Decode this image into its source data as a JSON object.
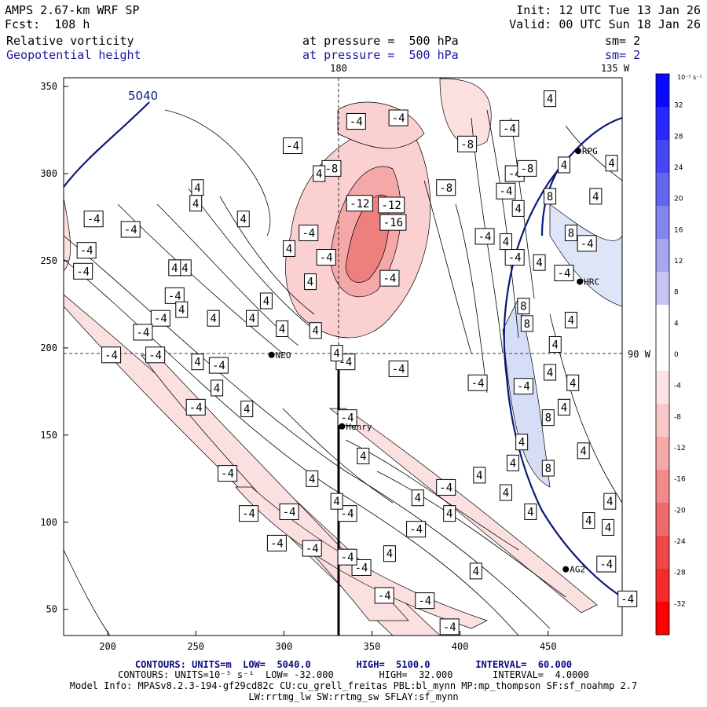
{
  "header": {
    "model": "AMPS 2.67-km WRF SP",
    "init": "Init: 12 UTC Tue 13 Jan 26",
    "fcst": "Fcst:  108 h",
    "valid": "Valid: 00 UTC Sun 18 Jan 26",
    "field1": "Relative vorticity",
    "field1_level": "at pressure =  500 hPa",
    "field1_sm": "sm= 2",
    "field2": "Geopotential height",
    "field2_level": "at pressure =  500 hPa",
    "field2_sm": "sm= 2"
  },
  "map": {
    "lon_label_top": "180",
    "lon_label_right_top": "135 W",
    "lat_label_right": "90 W",
    "height_contour_label": "5040",
    "x_ticks": [
      "200",
      "250",
      "300",
      "350",
      "400",
      "450"
    ],
    "y_ticks": [
      "350",
      "300",
      "250",
      "200",
      "150",
      "100",
      "50"
    ],
    "stations": [
      {
        "name": "RPG",
        "x": 467,
        "y": 313
      },
      {
        "name": "HRC",
        "x": 468,
        "y": 238
      },
      {
        "name": "NEO",
        "x": 293,
        "y": 196
      },
      {
        "name": "Henry",
        "x": 333,
        "y": 155
      },
      {
        "name": "AG2",
        "x": 460,
        "y": 73
      }
    ],
    "vorticity_labels": [
      {
        "t": "-4",
        "x": 213,
        "y": 268
      },
      {
        "t": "-4",
        "x": 192,
        "y": 274
      },
      {
        "t": "-4",
        "x": 188,
        "y": 256
      },
      {
        "t": "-4",
        "x": 186,
        "y": 244
      },
      {
        "t": "-4",
        "x": 230,
        "y": 217
      },
      {
        "t": "-4",
        "x": 220,
        "y": 209
      },
      {
        "t": "-4",
        "x": 202,
        "y": 196
      },
      {
        "t": "-4",
        "x": 227,
        "y": 196
      },
      {
        "t": "-4",
        "x": 242,
        "y": 246
      },
      {
        "t": "-4",
        "x": 238,
        "y": 230
      },
      {
        "t": "-4",
        "x": 263,
        "y": 190
      },
      {
        "t": "-4",
        "x": 250,
        "y": 166
      },
      {
        "t": "-4",
        "x": 268,
        "y": 128
      },
      {
        "t": "-4",
        "x": 280,
        "y": 105
      },
      {
        "t": "-4",
        "x": 303,
        "y": 106
      },
      {
        "t": "-4",
        "x": 296,
        "y": 88
      },
      {
        "t": "-4",
        "x": 316,
        "y": 85
      },
      {
        "t": "-4",
        "x": 344,
        "y": 74
      },
      {
        "t": "-4",
        "x": 357,
        "y": 58
      },
      {
        "t": "-4",
        "x": 380,
        "y": 55
      },
      {
        "t": "-4",
        "x": 394,
        "y": 40
      },
      {
        "t": "-4",
        "x": 314,
        "y": 266
      },
      {
        "t": "-4",
        "x": 305,
        "y": 316
      },
      {
        "t": "-4",
        "x": 324,
        "y": 252
      },
      {
        "t": "-4",
        "x": 335,
        "y": 192
      },
      {
        "t": "-4",
        "x": 336,
        "y": 160
      },
      {
        "t": "-4",
        "x": 336,
        "y": 80
      },
      {
        "t": "-4",
        "x": 336,
        "y": 105
      },
      {
        "t": "-4",
        "x": 341,
        "y": 330
      },
      {
        "t": "-4",
        "x": 365,
        "y": 332
      },
      {
        "t": "-4",
        "x": 360,
        "y": 240
      },
      {
        "t": "-4",
        "x": 365,
        "y": 188
      },
      {
        "t": "-4",
        "x": 375,
        "y": 96
      },
      {
        "t": "-4",
        "x": 392,
        "y": 120
      },
      {
        "t": "-4",
        "x": 410,
        "y": 180
      },
      {
        "t": "-4",
        "x": 414,
        "y": 264
      },
      {
        "t": "-4",
        "x": 428,
        "y": 326
      },
      {
        "t": "-4",
        "x": 431,
        "y": 300
      },
      {
        "t": "-4",
        "x": 426,
        "y": 290
      },
      {
        "t": "-4",
        "x": 431,
        "y": 252
      },
      {
        "t": "-4",
        "x": 436,
        "y": 178
      },
      {
        "t": "-4",
        "x": 459,
        "y": 243
      },
      {
        "t": "-4",
        "x": 472,
        "y": 260
      },
      {
        "t": "-4",
        "x": 483,
        "y": 76
      },
      {
        "t": "-4",
        "x": 495,
        "y": 56
      },
      {
        "t": "-8",
        "x": 404,
        "y": 317
      },
      {
        "t": "-8",
        "x": 327,
        "y": 303
      },
      {
        "t": "-8",
        "x": 392,
        "y": 292
      },
      {
        "t": "-8",
        "x": 438,
        "y": 303
      },
      {
        "t": "-12",
        "x": 343,
        "y": 283
      },
      {
        "t": "-12",
        "x": 361,
        "y": 282
      },
      {
        "t": "-16",
        "x": 362,
        "y": 272
      },
      {
        "t": "4",
        "x": 251,
        "y": 292
      },
      {
        "t": "4",
        "x": 250,
        "y": 283
      },
      {
        "t": "4",
        "x": 238,
        "y": 246
      },
      {
        "t": "4",
        "x": 242,
        "y": 222
      },
      {
        "t": "4",
        "x": 260,
        "y": 217
      },
      {
        "t": "4",
        "x": 251,
        "y": 192
      },
      {
        "t": "4",
        "x": 262,
        "y": 177
      },
      {
        "t": "4",
        "x": 282,
        "y": 217
      },
      {
        "t": "4",
        "x": 277,
        "y": 274
      },
      {
        "t": "4",
        "x": 290,
        "y": 227
      },
      {
        "t": "4",
        "x": 279,
        "y": 165
      },
      {
        "t": "4",
        "x": 299,
        "y": 211
      },
      {
        "t": "4",
        "x": 303,
        "y": 257
      },
      {
        "t": "4",
        "x": 320,
        "y": 300
      },
      {
        "t": "4",
        "x": 315,
        "y": 238
      },
      {
        "t": "4",
        "x": 318,
        "y": 210
      },
      {
        "t": "4",
        "x": 330,
        "y": 197
      },
      {
        "t": "4",
        "x": 316,
        "y": 125
      },
      {
        "t": "4",
        "x": 330,
        "y": 112
      },
      {
        "t": "4",
        "x": 345,
        "y": 138
      },
      {
        "t": "4",
        "x": 360,
        "y": 82
      },
      {
        "t": "4",
        "x": 376,
        "y": 114
      },
      {
        "t": "4",
        "x": 394,
        "y": 105
      },
      {
        "t": "4",
        "x": 411,
        "y": 127
      },
      {
        "t": "4",
        "x": 409,
        "y": 72
      },
      {
        "t": "4",
        "x": 435,
        "y": 146
      },
      {
        "t": "4",
        "x": 430,
        "y": 134
      },
      {
        "t": "4",
        "x": 426,
        "y": 117
      },
      {
        "t": "4",
        "x": 440,
        "y": 106
      },
      {
        "t": "4",
        "x": 426,
        "y": 261
      },
      {
        "t": "4",
        "x": 433,
        "y": 280
      },
      {
        "t": "4",
        "x": 445,
        "y": 249
      },
      {
        "t": "4",
        "x": 451,
        "y": 186
      },
      {
        "t": "4",
        "x": 454,
        "y": 202
      },
      {
        "t": "4",
        "x": 459,
        "y": 166
      },
      {
        "t": "4",
        "x": 463,
        "y": 216
      },
      {
        "t": "4",
        "x": 464,
        "y": 180
      },
      {
        "t": "4",
        "x": 470,
        "y": 141
      },
      {
        "t": "4",
        "x": 473,
        "y": 101
      },
      {
        "t": "4",
        "x": 484,
        "y": 97
      },
      {
        "t": "4",
        "x": 485,
        "y": 112
      },
      {
        "t": "4",
        "x": 477,
        "y": 287
      },
      {
        "t": "4",
        "x": 486,
        "y": 306
      },
      {
        "t": "4",
        "x": 459,
        "y": 305
      },
      {
        "t": "4",
        "x": 451,
        "y": 343
      },
      {
        "t": "8",
        "x": 451,
        "y": 287
      },
      {
        "t": "8",
        "x": 463,
        "y": 266
      },
      {
        "t": "8",
        "x": 436,
        "y": 224
      },
      {
        "t": "8",
        "x": 438,
        "y": 214
      },
      {
        "t": "8",
        "x": 450,
        "y": 160
      },
      {
        "t": "8",
        "x": 450,
        "y": 131
      }
    ]
  },
  "colorbar": {
    "unit": "10⁻⁵ s⁻¹",
    "levels": [
      "32",
      "28",
      "24",
      "20",
      "16",
      "12",
      "8",
      "4",
      "0",
      "-4",
      "-8",
      "-12",
      "-16",
      "-20",
      "-24",
      "-28",
      "-32"
    ]
  },
  "footer": {
    "line1": "CONTOURS: UNITS=m  LOW=  5040.0        HIGH=  5100.0        INTERVAL=  60.000",
    "line2": "CONTOURS: UNITS=10⁻⁵ s⁻¹  LOW= -32.000        HIGH=  32.000       INTERVAL=  4.0000",
    "line3": "Model Info: MPASv8.2.3-194-gf29cd82c CU:cu_grell_freitas PBL:bl_mynn MP:mp_thompson SF:sf_noahmp 2.7",
    "line4": "LW:rrtmg_lw SW:rrtmg_sw SFLAY:sf_mynn"
  }
}
